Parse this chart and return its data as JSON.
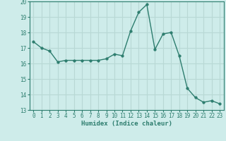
{
  "xlabel": "Humidex (Indice chaleur)",
  "x": [
    0,
    1,
    2,
    3,
    4,
    5,
    6,
    7,
    8,
    9,
    10,
    11,
    12,
    13,
    14,
    15,
    16,
    17,
    18,
    19,
    20,
    21,
    22,
    23
  ],
  "y": [
    17.4,
    17.0,
    16.8,
    16.1,
    16.2,
    16.2,
    16.2,
    16.2,
    16.2,
    16.3,
    16.6,
    16.5,
    18.1,
    19.3,
    19.8,
    16.9,
    17.9,
    18.0,
    16.5,
    14.4,
    13.8,
    13.5,
    13.6,
    13.4
  ],
  "line_color": "#2d7d6e",
  "marker_size": 2.5,
  "bg_color": "#ceecea",
  "grid_color": "#b8d8d5",
  "ylim": [
    13,
    20
  ],
  "xlim": [
    -0.5,
    23.5
  ],
  "yticks": [
    13,
    14,
    15,
    16,
    17,
    18,
    19,
    20
  ],
  "xticks": [
    0,
    1,
    2,
    3,
    4,
    5,
    6,
    7,
    8,
    9,
    10,
    11,
    12,
    13,
    14,
    15,
    16,
    17,
    18,
    19,
    20,
    21,
    22,
    23
  ],
  "tick_fontsize": 5.5,
  "label_fontsize": 6.5,
  "spine_color": "#2d7d6e"
}
